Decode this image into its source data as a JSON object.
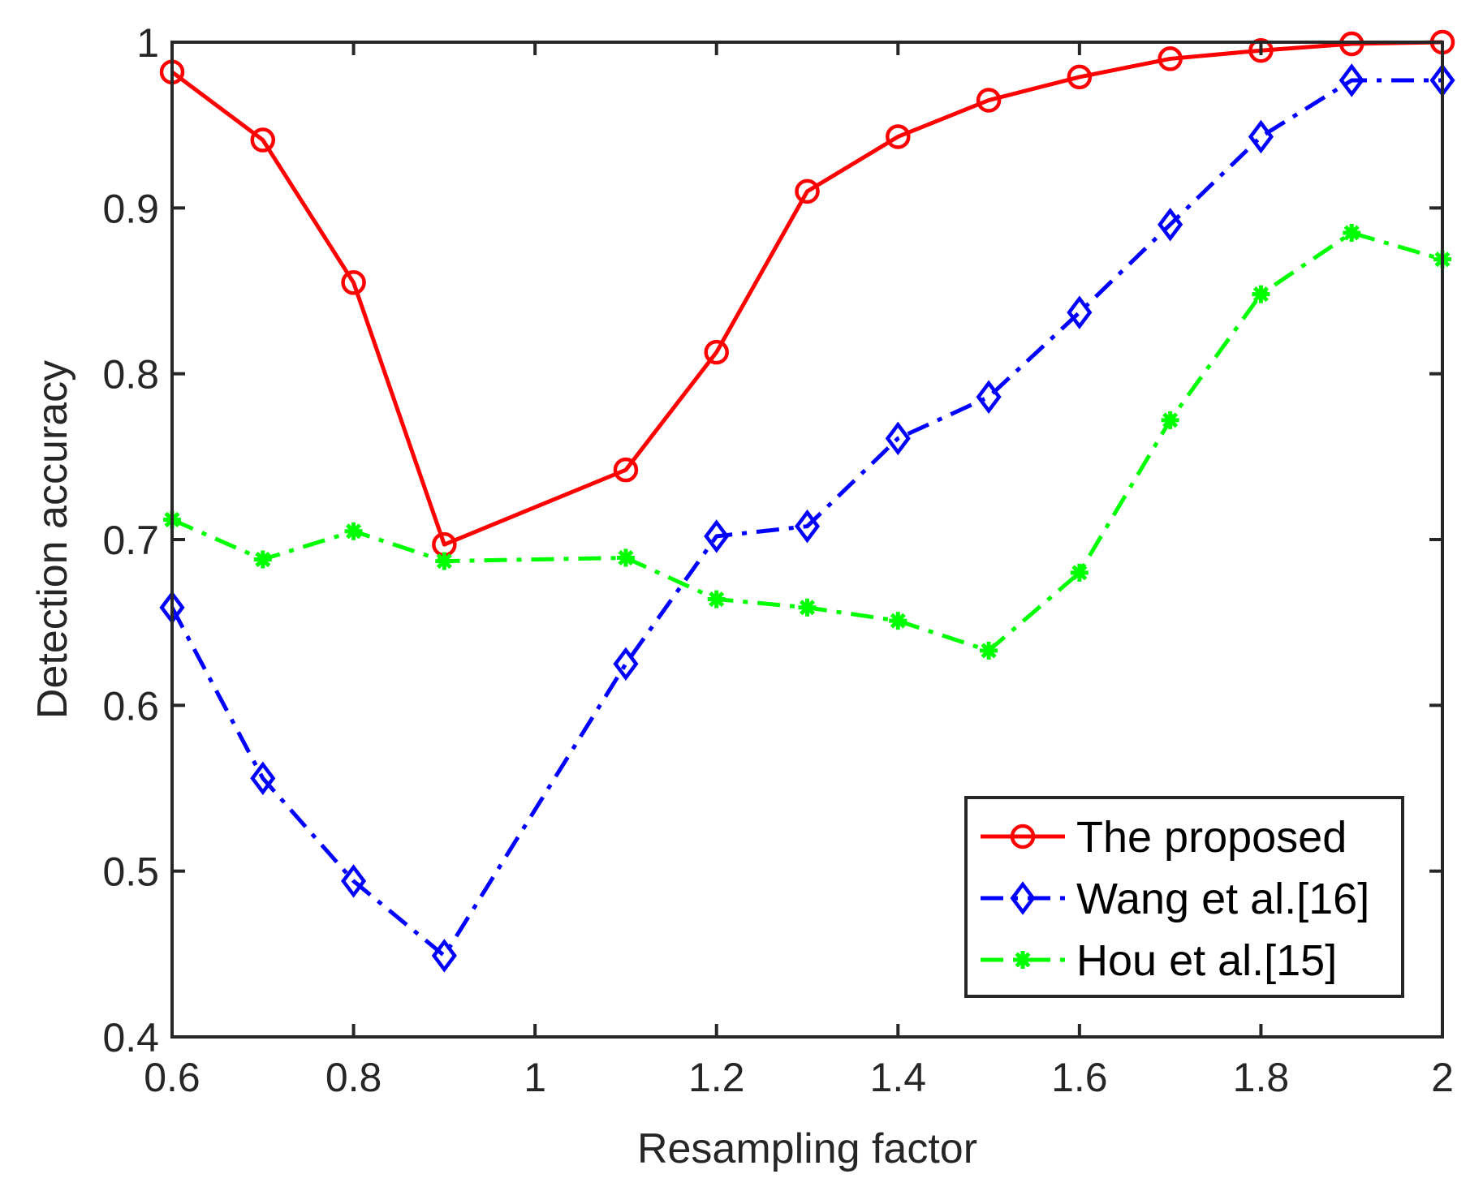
{
  "chart_data": {
    "type": "line",
    "title": "",
    "xlabel": "Resampling factor",
    "ylabel": "Detection accuracy",
    "xlim": [
      0.6,
      2
    ],
    "ylim": [
      0.4,
      1
    ],
    "xticks": [
      0.6,
      0.8,
      1,
      1.2,
      1.4,
      1.6,
      1.8,
      2
    ],
    "xtick_labels": [
      "0.6",
      "0.8",
      "1",
      "1.2",
      "1.4",
      "1.6",
      "1.8",
      "2"
    ],
    "yticks": [
      0.4,
      0.5,
      0.6,
      0.7,
      0.8,
      0.9,
      1
    ],
    "ytick_labels": [
      "0.4",
      "0.5",
      "0.6",
      "0.7",
      "0.8",
      "0.9",
      "1"
    ],
    "grid": false,
    "legend_position": "bottom-right",
    "series": [
      {
        "name": "The proposed",
        "color": "#ff0000",
        "line": "solid",
        "marker": "circle",
        "x": [
          0.6,
          0.7,
          0.8,
          0.9,
          1.1,
          1.2,
          1.3,
          1.4,
          1.5,
          1.6,
          1.7,
          1.8,
          1.9,
          2.0
        ],
        "values": [
          0.982,
          0.941,
          0.855,
          0.697,
          0.742,
          0.813,
          0.91,
          0.943,
          0.965,
          0.979,
          0.99,
          0.995,
          0.999,
          1.0
        ]
      },
      {
        "name": "Wang et al.[16]",
        "color": "#0000ff",
        "line": "dashdot",
        "marker": "diamond",
        "x": [
          0.6,
          0.7,
          0.8,
          0.9,
          1.1,
          1.2,
          1.3,
          1.4,
          1.5,
          1.6,
          1.7,
          1.8,
          1.9,
          2.0
        ],
        "values": [
          0.659,
          0.556,
          0.494,
          0.449,
          0.625,
          0.702,
          0.708,
          0.761,
          0.786,
          0.837,
          0.89,
          0.943,
          0.977,
          0.977
        ]
      },
      {
        "name": "Hou et al.[15]",
        "color": "#00ff00",
        "line": "dashdot",
        "marker": "asterisk",
        "x": [
          0.6,
          0.7,
          0.8,
          0.9,
          1.1,
          1.2,
          1.3,
          1.4,
          1.5,
          1.6,
          1.7,
          1.8,
          1.9,
          2.0
        ],
        "values": [
          0.712,
          0.688,
          0.705,
          0.687,
          0.689,
          0.664,
          0.659,
          0.651,
          0.633,
          0.68,
          0.772,
          0.848,
          0.885,
          0.869
        ]
      }
    ]
  }
}
